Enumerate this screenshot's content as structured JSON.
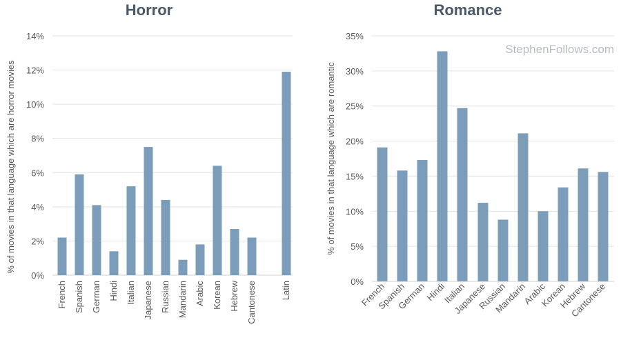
{
  "colors": {
    "bar": "#7b9db9",
    "title": "#4a5a6a",
    "text": "#5a5a5a",
    "grid": "#e3e3e3"
  },
  "watermark": "StephenFollows.com",
  "chart_data": [
    {
      "type": "bar",
      "title": "Horror",
      "ylabel": "% of movies in that language which are horror movies",
      "xlabel": "",
      "ylim": [
        0,
        14
      ],
      "yticks": [
        "0%",
        "2%",
        "4%",
        "6%",
        "8%",
        "10%",
        "12%",
        "14%"
      ],
      "categories": [
        "French",
        "Spanish",
        "German",
        "Hindi",
        "Italian",
        "Japanese",
        "Russian",
        "Mandarin",
        "Arabic",
        "Korean",
        "Hebrew",
        "Cantonese",
        "Latin"
      ],
      "values": [
        2.2,
        5.9,
        4.1,
        1.4,
        5.2,
        7.5,
        4.4,
        0.9,
        1.8,
        6.4,
        2.7,
        2.2,
        11.9
      ],
      "grid": true
    },
    {
      "type": "bar",
      "title": "Romance",
      "ylabel": "% of movies in that language which are romantic",
      "xlabel": "",
      "ylim": [
        0,
        35
      ],
      "yticks": [
        "0%",
        "5%",
        "10%",
        "15%",
        "20%",
        "25%",
        "30%",
        "35%"
      ],
      "categories": [
        "French",
        "Spanish",
        "German",
        "Hindi",
        "Italian",
        "Japanese",
        "Russian",
        "Mandarin",
        "Arabic",
        "Korean",
        "Hebrew",
        "Cantonese"
      ],
      "values": [
        19.1,
        15.8,
        17.3,
        32.8,
        24.7,
        11.2,
        8.8,
        21.1,
        10.0,
        13.4,
        16.1,
        15.6
      ],
      "grid": true
    }
  ]
}
